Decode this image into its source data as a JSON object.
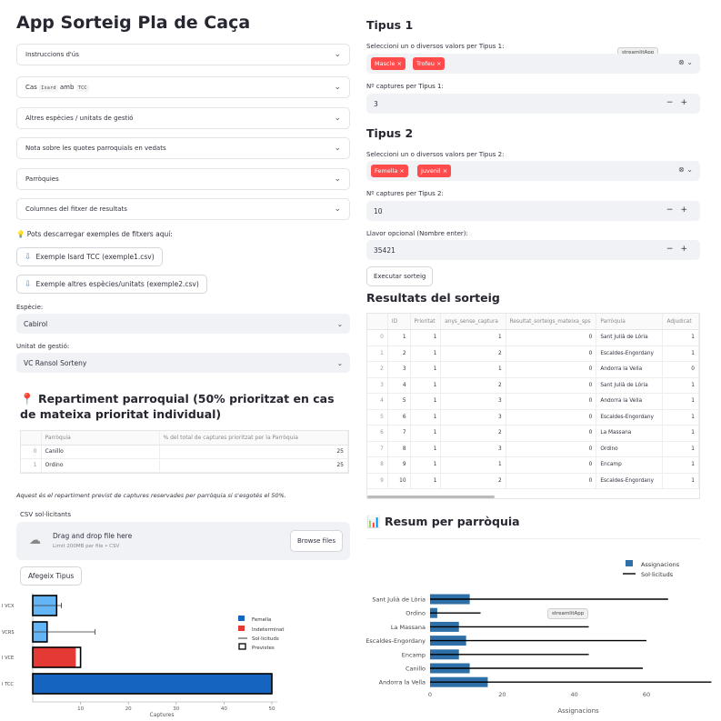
{
  "app_title": "App Sorteig Pla de Caça",
  "expanders": [
    {
      "label": "Instruccions d'ús"
    },
    {
      "label_pre": "Cas",
      "code1": "Isard",
      "label_mid": "amb",
      "code2": "TCC"
    },
    {
      "label": "Altres espècies / unitats de gestió"
    },
    {
      "label": "Nota sobre les quotes parroquials en vedats"
    },
    {
      "label": "Parròquies"
    },
    {
      "label": "Columnes del fitxer de resultats"
    }
  ],
  "download_hint": "Pots descarregar exemples de fitxers aquí:",
  "download_buttons": [
    "Exemple Isard TCC (exemple1.csv)",
    "Exemple altres espècies/unitats (exemple2.csv)"
  ],
  "especie": {
    "label": "Espècie:",
    "value": "Cabirol"
  },
  "unitat": {
    "label": "Unitat de gestió:",
    "value": "VC Ransol Sorteny"
  },
  "repartiment": {
    "title": "Repartiment parroquial (50% prioritzat en cas de mateixa prioritat individual)",
    "columns": [
      "",
      "Parròquia",
      "% del total de captures prioritzat per la Parròquia"
    ],
    "rows": [
      [
        "0",
        "Canillo",
        "25"
      ],
      [
        "1",
        "Ordino",
        "25"
      ]
    ],
    "note": "Aquest és el repartiment previst de captures reservades per parròquia si s'esgotés el 50%."
  },
  "upload": {
    "label": "CSV sol·licitants",
    "drop_text": "Drag and drop file here",
    "limit": "Limit 200MB per file • CSV",
    "browse": "Browse files"
  },
  "afegeix_button": "Afegeix Tipus",
  "left_chart": {
    "categories": [
      "I VCX",
      "VCRS",
      "I VCE",
      "I TCC"
    ],
    "xlabel": "Captures",
    "xticks": [
      10,
      20,
      30,
      40,
      50
    ],
    "legend": [
      "Femella",
      "Indeterminat",
      "Sol·licituds",
      "Previstes"
    ],
    "colors": {
      "femella": "#1565c0",
      "femella_light": "#64b5f6",
      "indeterminat": "#e53935"
    }
  },
  "chart_data": [
    {
      "type": "bar",
      "orientation": "horizontal",
      "categories": [
        "I VCX",
        "VCRS",
        "I VCE",
        "I TCC"
      ],
      "series": [
        {
          "name": "Femella",
          "values": [
            5,
            3,
            0,
            50
          ]
        },
        {
          "name": "Indeterminat",
          "values": [
            0,
            0,
            9,
            0
          ]
        },
        {
          "name": "Previstes",
          "values": [
            5,
            3,
            10,
            50
          ]
        },
        {
          "name": "Sol·licituds",
          "values": [
            [
              0,
              6
            ],
            [
              0,
              13
            ],
            [
              0,
              0
            ],
            [
              0,
              0
            ]
          ]
        }
      ],
      "xlabel": "Captures",
      "xlim": [
        0,
        52
      ]
    },
    {
      "type": "bar",
      "orientation": "horizontal",
      "categories": [
        "Sant Julià de Lòria",
        "Ordino",
        "La Massana",
        "Escaldes-Engordany",
        "Encamp",
        "Canillo",
        "Andorra la Vella"
      ],
      "series": [
        {
          "name": "Assignacions",
          "values": [
            11,
            2,
            8,
            10,
            8,
            11,
            16
          ]
        },
        {
          "name": "Sol·licituds",
          "values": [
            66,
            14,
            44,
            60,
            44,
            59,
            78
          ]
        }
      ],
      "xlabel": "Assignacions",
      "xticks": [
        0,
        20,
        40,
        60
      ],
      "xlim": [
        0,
        78
      ]
    }
  ],
  "tipus1": {
    "title": "Tipus 1",
    "label": "Seleccioni un o diversos valors per Tipus 1:",
    "tags": [
      "Mascle",
      "Trofeu"
    ],
    "captures_label": "Nº captures per Tipus 1:",
    "captures_value": "3"
  },
  "tipus2": {
    "title": "Tipus 2",
    "label": "Seleccioni un o diversos valors per Tipus 2:",
    "tags": [
      "Femella",
      "Juvenil"
    ],
    "captures_label": "Nº captures per Tipus 2:",
    "captures_value": "10"
  },
  "llavor": {
    "label": "Llavor opcional (Nombre enter):",
    "value": "35421"
  },
  "tooltip": "streamlitApp",
  "run_button": "Executar sorteig",
  "results": {
    "title": "Resultats del sorteig",
    "columns": [
      "",
      "ID",
      "Prioritat",
      "anys_sense_captura",
      "Resultat_sorteigs_mateixa_sps",
      "Parròquia",
      "Adjudicat"
    ],
    "rows": [
      [
        "0",
        "1",
        "1",
        "1",
        "0",
        "Sant Julià de Lòria",
        "1"
      ],
      [
        "1",
        "2",
        "1",
        "2",
        "0",
        "Escaldes-Engordany",
        "1"
      ],
      [
        "2",
        "3",
        "1",
        "1",
        "0",
        "Andorra la Vella",
        "0"
      ],
      [
        "3",
        "4",
        "1",
        "2",
        "0",
        "Sant Julià de Lòria",
        "1"
      ],
      [
        "4",
        "5",
        "1",
        "3",
        "0",
        "Andorra la Vella",
        "1"
      ],
      [
        "5",
        "6",
        "1",
        "3",
        "0",
        "Escaldes-Engordany",
        "1"
      ],
      [
        "6",
        "7",
        "1",
        "2",
        "0",
        "La Massana",
        "1"
      ],
      [
        "7",
        "8",
        "1",
        "3",
        "0",
        "Ordino",
        "1"
      ],
      [
        "8",
        "9",
        "1",
        "1",
        "0",
        "Encamp",
        "1"
      ],
      [
        "9",
        "10",
        "1",
        "2",
        "0",
        "Escaldes-Engordany",
        "1"
      ]
    ]
  },
  "resum_title": "Resum per parròquia",
  "right_chart": {
    "legend": [
      "Assignacions",
      "Sol·licituds"
    ],
    "colors": {
      "assignacions": "#2e6fa7",
      "solicituds": "#000000"
    }
  }
}
